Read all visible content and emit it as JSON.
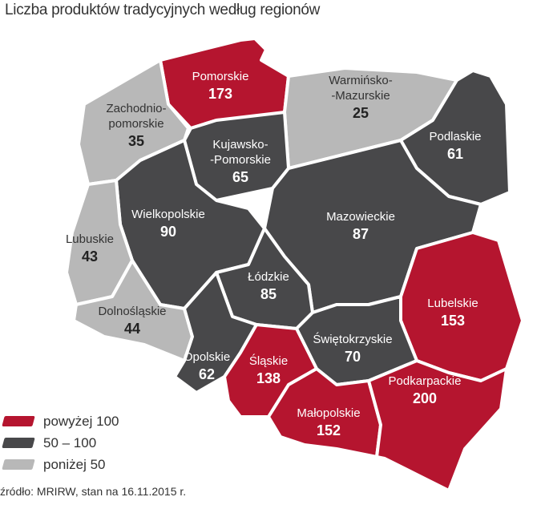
{
  "title": "Liczba produktów tradycyjnych według regionów",
  "colors": {
    "high": "#b5152f",
    "mid": "#48484a",
    "low": "#b8b8b8"
  },
  "regions": [
    {
      "name": "Pomorskie",
      "value": "173",
      "cat": "high"
    },
    {
      "name": "Zachodnio-",
      "name2": "pomorskie",
      "value": "35",
      "cat": "low"
    },
    {
      "name": "Warmińsko-",
      "name2": "-Mazurskie",
      "value": "25",
      "cat": "low"
    },
    {
      "name": "Podlaskie",
      "value": "61",
      "cat": "mid"
    },
    {
      "name": "Kujawsko-",
      "name2": "-Pomorskie",
      "value": "65",
      "cat": "mid"
    },
    {
      "name": "Wielkopolskie",
      "value": "90",
      "cat": "mid"
    },
    {
      "name": "Lubuskie",
      "value": "43",
      "cat": "low"
    },
    {
      "name": "Mazowieckie",
      "value": "87",
      "cat": "mid"
    },
    {
      "name": "Łódzkie",
      "value": "85",
      "cat": "mid"
    },
    {
      "name": "Dolnośląskie",
      "value": "44",
      "cat": "low"
    },
    {
      "name": "Opolskie",
      "value": "62",
      "cat": "mid"
    },
    {
      "name": "Lubelskie",
      "value": "153",
      "cat": "high"
    },
    {
      "name": "Świętokrzyskie",
      "value": "70",
      "cat": "mid"
    },
    {
      "name": "Śląskie",
      "value": "138",
      "cat": "high"
    },
    {
      "name": "Małopolskie",
      "value": "152",
      "cat": "high"
    },
    {
      "name": "Podkarpackie",
      "value": "200",
      "cat": "high"
    }
  ],
  "legend": [
    {
      "label": "powyżej 100",
      "cat": "high"
    },
    {
      "label": "50 – 100",
      "cat": "mid"
    },
    {
      "label": "poniżej 50",
      "cat": "low"
    }
  ],
  "source": "źródło: MRIRW, stan na 16.11.2015 r."
}
